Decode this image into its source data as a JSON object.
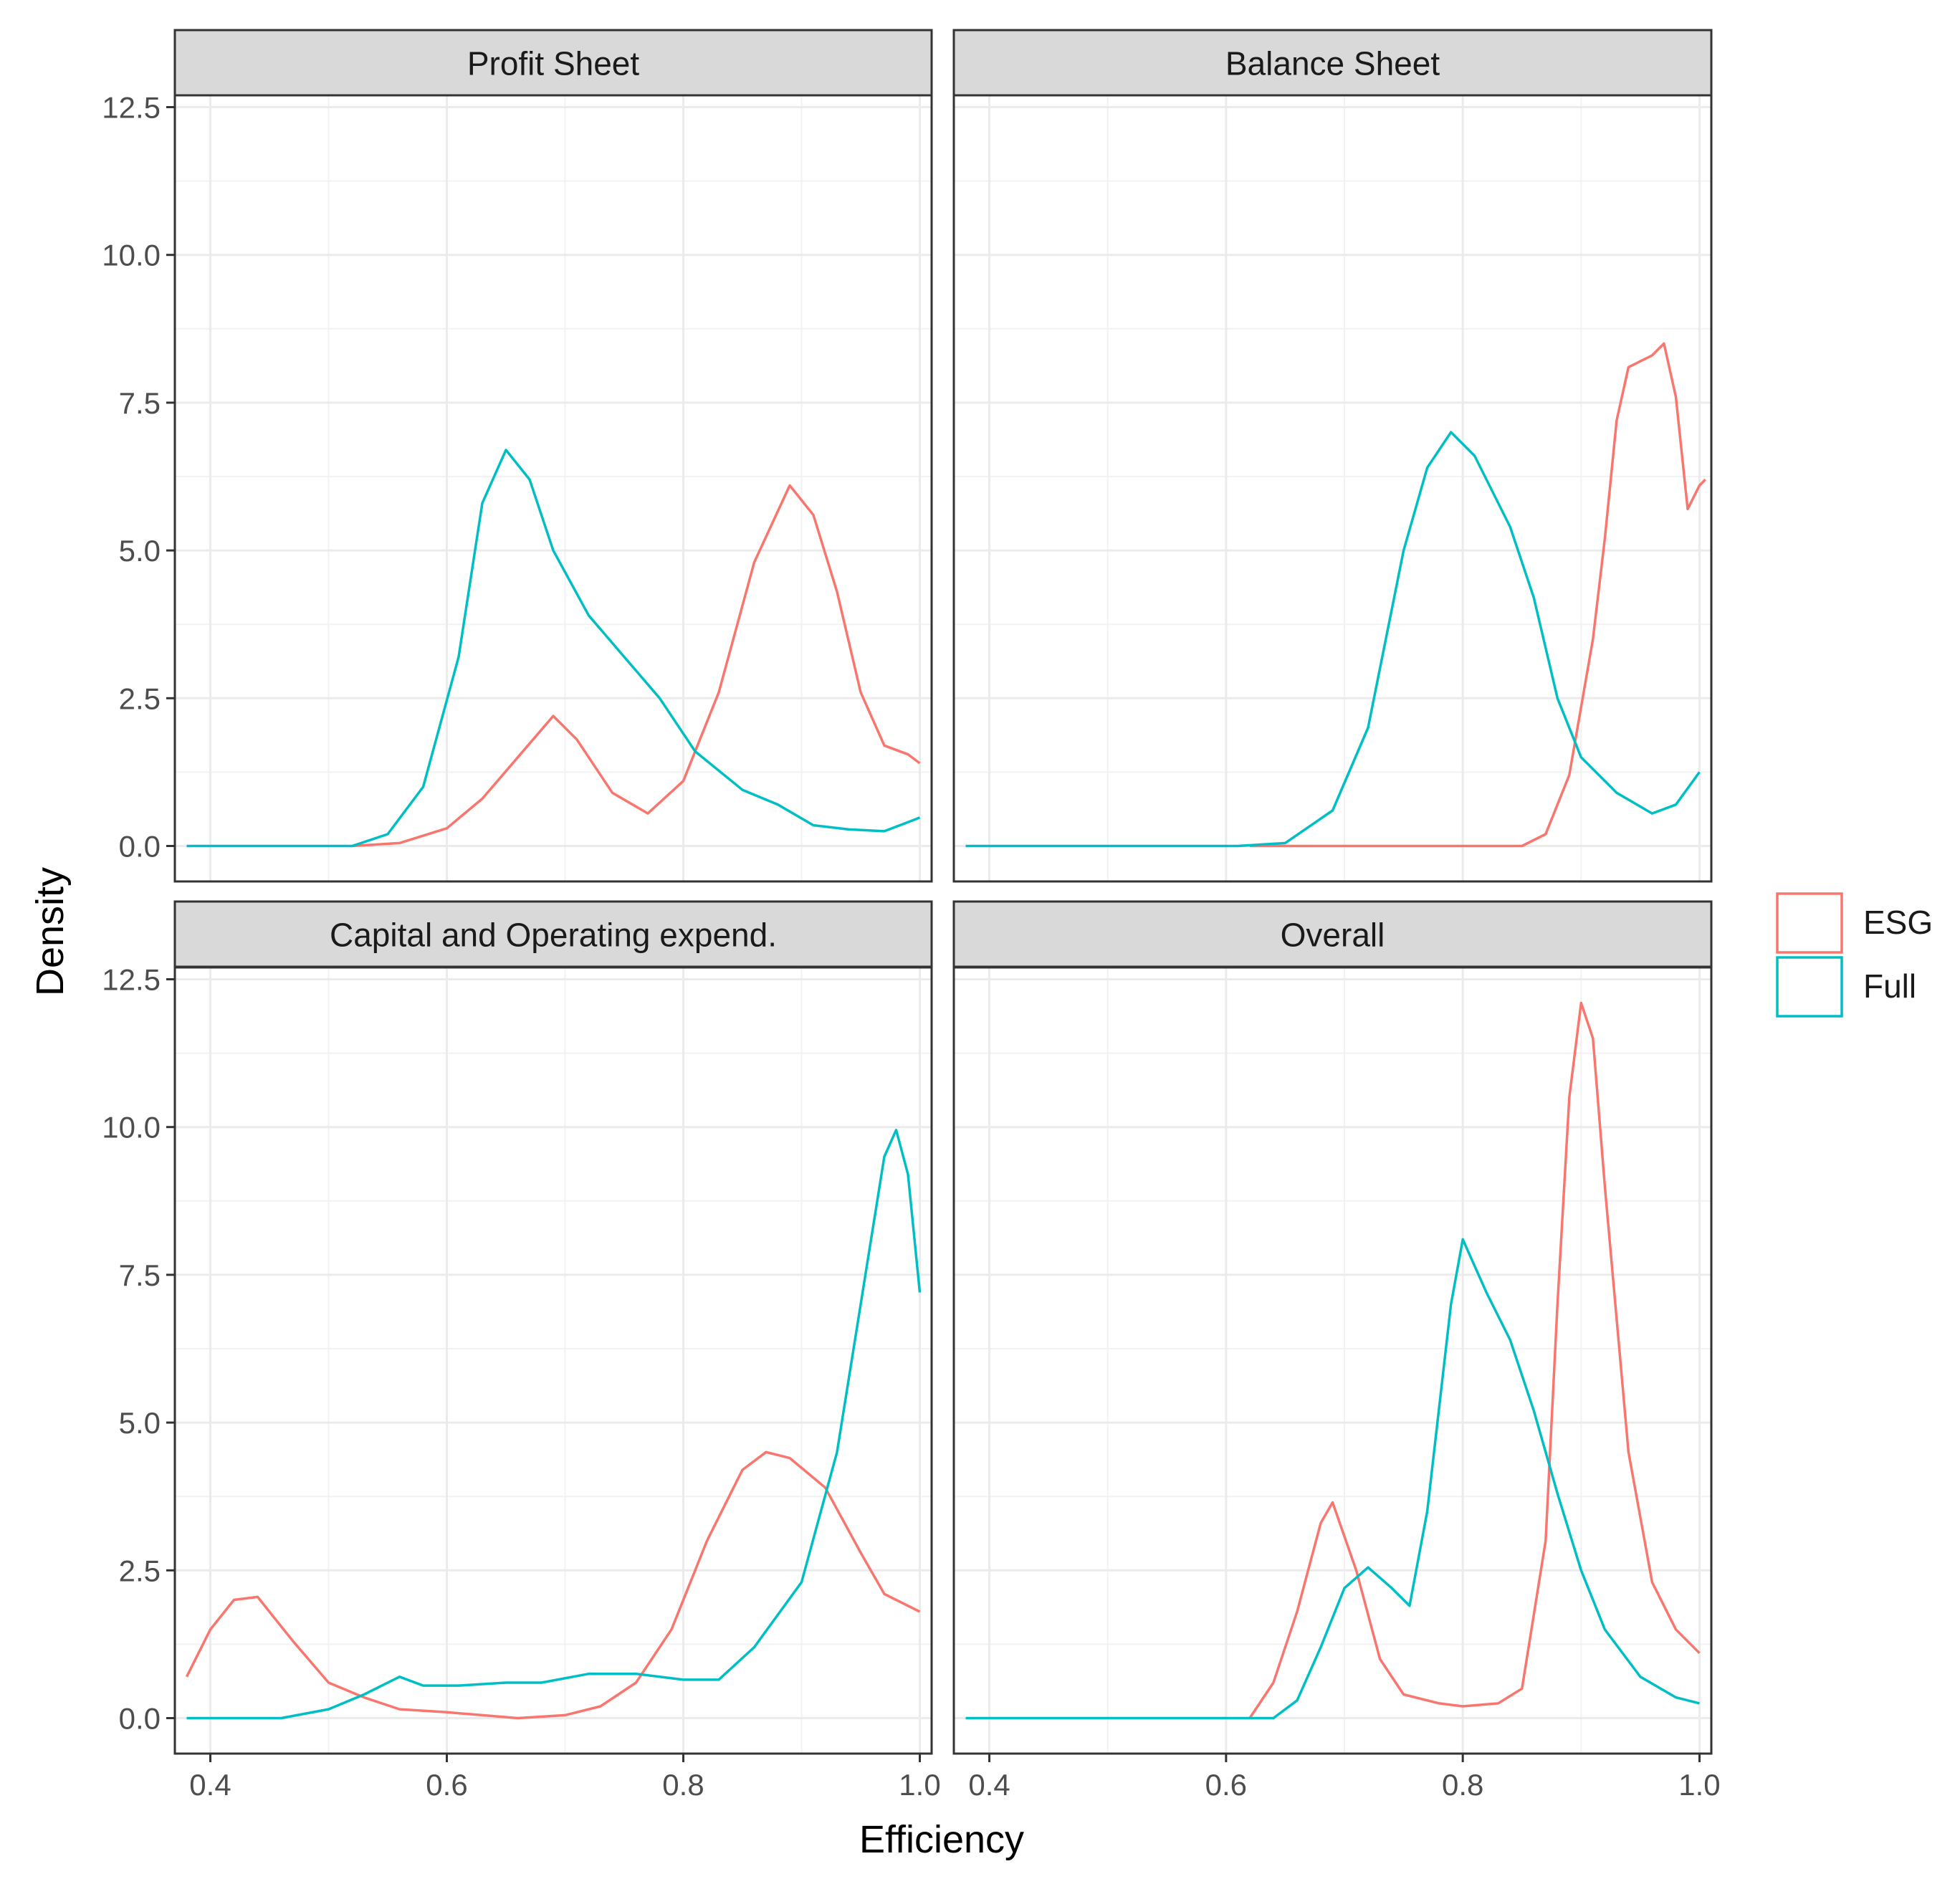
{
  "chart_data": {
    "type": "line",
    "xlabel": "Efficiency",
    "ylabel": "Density",
    "xlim": [
      0.37,
      1.01
    ],
    "ylim": [
      -0.6,
      12.7
    ],
    "x_ticks": [
      0.4,
      0.6,
      0.8,
      1.0
    ],
    "x_tick_labels": [
      "0.4",
      "0.6",
      "0.8",
      "1.0"
    ],
    "y_ticks": [
      0,
      2.5,
      5,
      7.5,
      10,
      12.5
    ],
    "y_tick_labels": [
      "0.0",
      "2.5",
      "5.0",
      "7.5",
      "10.0",
      "12.5"
    ],
    "grid": true,
    "legend_position": "right",
    "legend": [
      {
        "name": "ESG",
        "color": "#F8766D"
      },
      {
        "name": "Full",
        "color": "#00BFC4"
      }
    ],
    "panels": [
      {
        "title": "Profit Sheet",
        "series": [
          {
            "name": "ESG",
            "color": "#F8766D",
            "points": [
              [
                0.52,
                0
              ],
              [
                0.56,
                0.05
              ],
              [
                0.6,
                0.3
              ],
              [
                0.63,
                0.8
              ],
              [
                0.66,
                1.5
              ],
              [
                0.69,
                2.2
              ],
              [
                0.71,
                1.8
              ],
              [
                0.74,
                0.9
              ],
              [
                0.77,
                0.55
              ],
              [
                0.8,
                1.1
              ],
              [
                0.83,
                2.6
              ],
              [
                0.86,
                4.8
              ],
              [
                0.89,
                6.1
              ],
              [
                0.91,
                5.6
              ],
              [
                0.93,
                4.3
              ],
              [
                0.95,
                2.6
              ],
              [
                0.97,
                1.7
              ],
              [
                0.99,
                1.55
              ],
              [
                1.0,
                1.4
              ]
            ]
          },
          {
            "name": "Full",
            "color": "#00BFC4",
            "points": [
              [
                0.38,
                0
              ],
              [
                0.52,
                0
              ],
              [
                0.55,
                0.2
              ],
              [
                0.58,
                1.0
              ],
              [
                0.61,
                3.2
              ],
              [
                0.63,
                5.8
              ],
              [
                0.65,
                6.7
              ],
              [
                0.67,
                6.2
              ],
              [
                0.69,
                5.0
              ],
              [
                0.72,
                3.9
              ],
              [
                0.75,
                3.2
              ],
              [
                0.78,
                2.5
              ],
              [
                0.81,
                1.6
              ],
              [
                0.85,
                0.95
              ],
              [
                0.88,
                0.7
              ],
              [
                0.91,
                0.35
              ],
              [
                0.94,
                0.28
              ],
              [
                0.97,
                0.25
              ],
              [
                1.0,
                0.48
              ]
            ]
          }
        ]
      },
      {
        "title": "Balance Sheet",
        "series": [
          {
            "name": "ESG",
            "color": "#F8766D",
            "points": [
              [
                0.62,
                0
              ],
              [
                0.85,
                0
              ],
              [
                0.87,
                0.2
              ],
              [
                0.89,
                1.2
              ],
              [
                0.91,
                3.5
              ],
              [
                0.92,
                5.2
              ],
              [
                0.93,
                7.2
              ],
              [
                0.94,
                8.1
              ],
              [
                0.96,
                8.3
              ],
              [
                0.97,
                8.5
              ],
              [
                0.98,
                7.6
              ],
              [
                0.99,
                5.7
              ],
              [
                1.0,
                6.1
              ],
              [
                1.005,
                6.2
              ]
            ]
          },
          {
            "name": "Full",
            "color": "#00BFC4",
            "points": [
              [
                0.38,
                0
              ],
              [
                0.61,
                0
              ],
              [
                0.65,
                0.05
              ],
              [
                0.69,
                0.6
              ],
              [
                0.72,
                2.0
              ],
              [
                0.75,
                5.0
              ],
              [
                0.77,
                6.4
              ],
              [
                0.79,
                7.0
              ],
              [
                0.81,
                6.6
              ],
              [
                0.84,
                5.4
              ],
              [
                0.86,
                4.2
              ],
              [
                0.88,
                2.5
              ],
              [
                0.9,
                1.5
              ],
              [
                0.93,
                0.9
              ],
              [
                0.96,
                0.55
              ],
              [
                0.98,
                0.7
              ],
              [
                1.0,
                1.25
              ]
            ]
          }
        ]
      },
      {
        "title": "Capital and Operating expend.",
        "series": [
          {
            "name": "ESG",
            "color": "#F8766D",
            "points": [
              [
                0.38,
                0.7
              ],
              [
                0.4,
                1.5
              ],
              [
                0.42,
                2.0
              ],
              [
                0.44,
                2.05
              ],
              [
                0.47,
                1.3
              ],
              [
                0.5,
                0.6
              ],
              [
                0.53,
                0.35
              ],
              [
                0.56,
                0.15
              ],
              [
                0.6,
                0.1
              ],
              [
                0.63,
                0.05
              ],
              [
                0.66,
                0.0
              ],
              [
                0.7,
                0.05
              ],
              [
                0.73,
                0.2
              ],
              [
                0.76,
                0.6
              ],
              [
                0.79,
                1.5
              ],
              [
                0.82,
                3.0
              ],
              [
                0.85,
                4.2
              ],
              [
                0.87,
                4.5
              ],
              [
                0.89,
                4.4
              ],
              [
                0.92,
                3.9
              ],
              [
                0.95,
                2.8
              ],
              [
                0.97,
                2.1
              ],
              [
                1.0,
                1.8
              ]
            ]
          },
          {
            "name": "Full",
            "color": "#00BFC4",
            "points": [
              [
                0.38,
                0
              ],
              [
                0.46,
                0
              ],
              [
                0.5,
                0.15
              ],
              [
                0.53,
                0.4
              ],
              [
                0.56,
                0.7
              ],
              [
                0.58,
                0.55
              ],
              [
                0.61,
                0.55
              ],
              [
                0.65,
                0.6
              ],
              [
                0.68,
                0.6
              ],
              [
                0.72,
                0.75
              ],
              [
                0.76,
                0.75
              ],
              [
                0.8,
                0.65
              ],
              [
                0.83,
                0.65
              ],
              [
                0.86,
                1.2
              ],
              [
                0.9,
                2.3
              ],
              [
                0.93,
                4.5
              ],
              [
                0.95,
                7.0
              ],
              [
                0.97,
                9.5
              ],
              [
                0.98,
                9.95
              ],
              [
                0.99,
                9.2
              ],
              [
                1.0,
                7.2
              ]
            ]
          }
        ]
      },
      {
        "title": "Overall",
        "series": [
          {
            "name": "ESG",
            "color": "#F8766D",
            "points": [
              [
                0.62,
                0
              ],
              [
                0.64,
                0.6
              ],
              [
                0.66,
                1.8
              ],
              [
                0.68,
                3.3
              ],
              [
                0.69,
                3.65
              ],
              [
                0.71,
                2.5
              ],
              [
                0.73,
                1.0
              ],
              [
                0.75,
                0.4
              ],
              [
                0.78,
                0.25
              ],
              [
                0.8,
                0.2
              ],
              [
                0.83,
                0.25
              ],
              [
                0.85,
                0.5
              ],
              [
                0.87,
                3.0
              ],
              [
                0.88,
                7.0
              ],
              [
                0.89,
                10.5
              ],
              [
                0.9,
                12.1
              ],
              [
                0.91,
                11.5
              ],
              [
                0.92,
                9.0
              ],
              [
                0.94,
                4.5
              ],
              [
                0.96,
                2.3
              ],
              [
                0.98,
                1.5
              ],
              [
                1.0,
                1.1
              ]
            ]
          },
          {
            "name": "Full",
            "color": "#00BFC4",
            "points": [
              [
                0.38,
                0
              ],
              [
                0.64,
                0
              ],
              [
                0.66,
                0.3
              ],
              [
                0.68,
                1.2
              ],
              [
                0.7,
                2.2
              ],
              [
                0.72,
                2.55
              ],
              [
                0.74,
                2.2
              ],
              [
                0.755,
                1.9
              ],
              [
                0.77,
                3.5
              ],
              [
                0.79,
                7.0
              ],
              [
                0.8,
                8.1
              ],
              [
                0.82,
                7.2
              ],
              [
                0.84,
                6.4
              ],
              [
                0.86,
                5.2
              ],
              [
                0.88,
                3.8
              ],
              [
                0.9,
                2.5
              ],
              [
                0.92,
                1.5
              ],
              [
                0.95,
                0.7
              ],
              [
                0.98,
                0.35
              ],
              [
                1.0,
                0.25
              ]
            ]
          }
        ]
      }
    ]
  }
}
